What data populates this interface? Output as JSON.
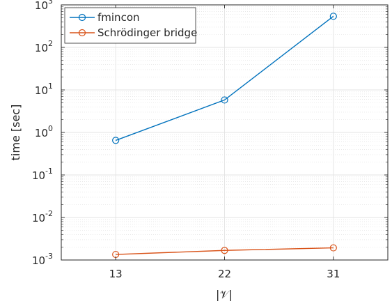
{
  "chart_data": {
    "type": "line",
    "x": [
      13,
      22,
      31
    ],
    "xticks": [
      "13",
      "22",
      "31"
    ],
    "xlim": [
      8.5,
      35.5
    ],
    "ylim": [
      0.001,
      1000
    ],
    "yscale": "log",
    "yticks": [
      {
        "base": "10",
        "exp": "-3"
      },
      {
        "base": "10",
        "exp": "-2"
      },
      {
        "base": "10",
        "exp": "-1"
      },
      {
        "base": "10",
        "exp": "0"
      },
      {
        "base": "10",
        "exp": "1"
      },
      {
        "base": "10",
        "exp": "2"
      },
      {
        "base": "10",
        "exp": "3"
      }
    ],
    "xlabel": "|𝒱|",
    "ylabel": "time [sec]",
    "grid": true,
    "minor_grid": true,
    "legend_position": "top-left",
    "series": [
      {
        "name": "fmincon",
        "color": "#0072bd",
        "marker": "circle",
        "values": [
          0.65,
          5.8,
          540
        ]
      },
      {
        "name": "Schrödinger bridge",
        "color": "#d95319",
        "marker": "circle",
        "values": [
          0.00135,
          0.00168,
          0.00193
        ]
      }
    ]
  }
}
